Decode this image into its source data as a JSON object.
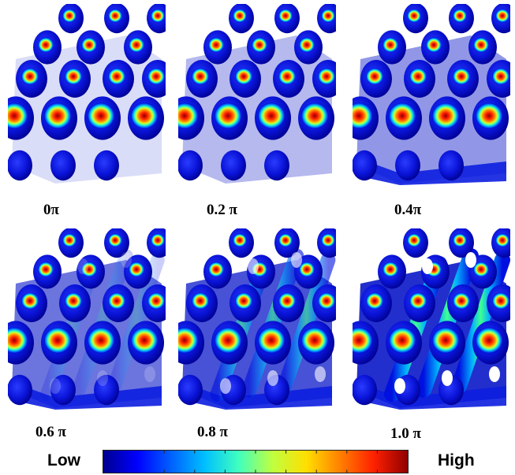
{
  "panels": [
    {
      "label": "0π",
      "phase": 0.0
    },
    {
      "label": "0.2 π",
      "phase": 0.2
    },
    {
      "label": "0.4π",
      "phase": 0.4
    },
    {
      "label": "0.6 π",
      "phase": 0.6
    },
    {
      "label": "0.8 π",
      "phase": 0.8
    },
    {
      "label": "1.0 π",
      "phase": 1.0
    }
  ],
  "colorbar": {
    "low_label": "Low",
    "high_label": "High",
    "colors": [
      "#00008f",
      "#0000ff",
      "#0060ff",
      "#00c0ff",
      "#40ffbf",
      "#bfff40",
      "#ffdf00",
      "#ff8000",
      "#ff2000",
      "#8f0000"
    ]
  }
}
